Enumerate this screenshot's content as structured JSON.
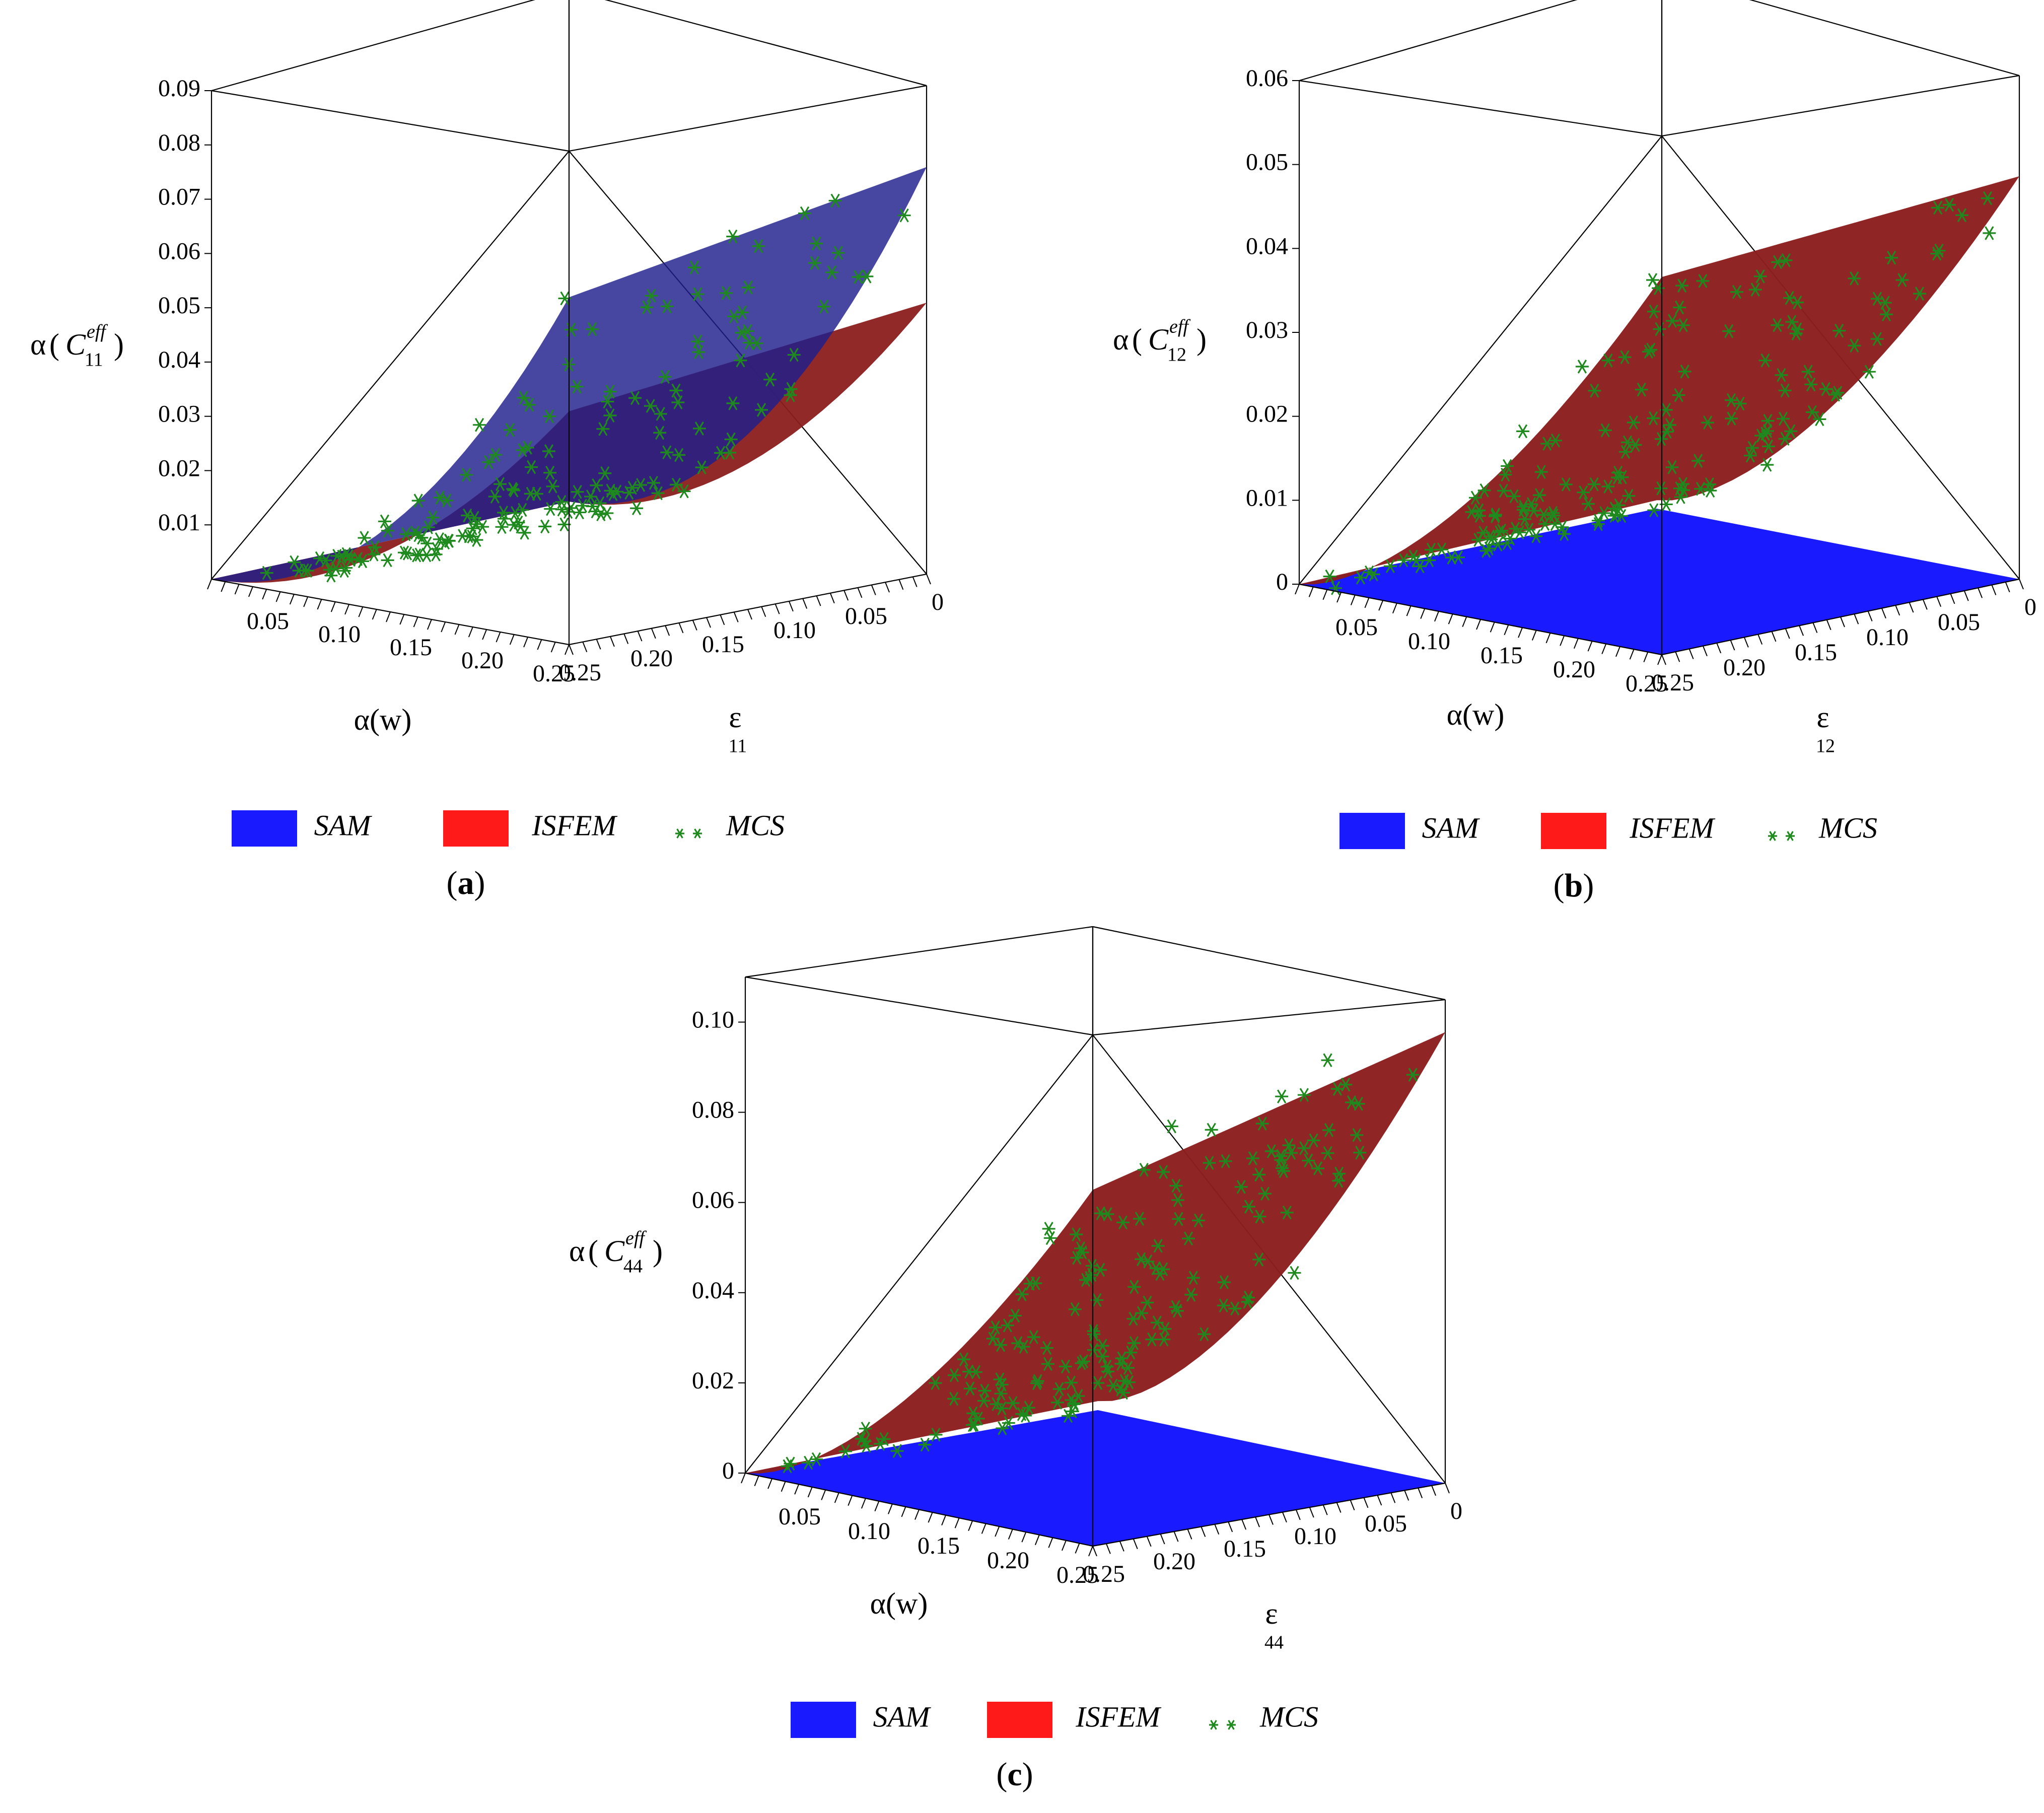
{
  "figure": {
    "legend_labels": {
      "sam": "SAM",
      "isfem": "ISFEM",
      "mcs": "MCS"
    },
    "colors": {
      "sam": "#1a1aff",
      "isfem": "#ff1a1a",
      "sam_surface": "#1e1e8c",
      "isfem_surface": "#8b1e1e",
      "mcs": "#1e8a1e"
    }
  },
  "chart_data": [
    {
      "panel": "a",
      "label_open": "(",
      "label_letter": "a",
      "label_close": ")",
      "type": "surface3d",
      "z_label_prefix": "α",
      "z_label_symbol": "C",
      "z_label_sup": "eff",
      "z_label_sub": "11",
      "x_label": "α(w)",
      "y_label": "ε",
      "y_label_sub": "11",
      "x_ticks": [
        "0.05",
        "0.10",
        "0.15",
        "0.20",
        "0.25"
      ],
      "y_ticks": [
        "0.25",
        "0.20",
        "0.15",
        "0.10",
        "0.05",
        "0"
      ],
      "z_ticks": [
        "0.01",
        "0.02",
        "0.03",
        "0.04",
        "0.05",
        "0.06",
        "0.07",
        "0.08",
        "0.09"
      ],
      "zlim": [
        0,
        0.09
      ],
      "xlim": [
        0,
        0.25
      ],
      "ylim": [
        0,
        0.25
      ],
      "series": [
        {
          "name": "SAM",
          "corners": {
            "origin": 0.0,
            "far_x": 0.064,
            "far_y": 0.0013,
            "far_xy": 0.075
          }
        },
        {
          "name": "ISFEM",
          "corners": {
            "origin": 0.0,
            "far_x": 0.043,
            "far_y": 0.0013,
            "far_xy": 0.05
          }
        }
      ]
    },
    {
      "panel": "b",
      "label_open": "(",
      "label_letter": "b",
      "label_close": ")",
      "type": "surface3d",
      "z_label_prefix": "α",
      "z_label_symbol": "C",
      "z_label_sup": "eff",
      "z_label_sub": "12",
      "x_label": "α(w)",
      "y_label": "ε",
      "y_label_sub": "12",
      "x_ticks": [
        "0.05",
        "0.10",
        "0.15",
        "0.20",
        "0.25"
      ],
      "y_ticks": [
        "0.25",
        "0.20",
        "0.15",
        "0.10",
        "0.05",
        "0"
      ],
      "z_ticks": [
        "0",
        "0.01",
        "0.02",
        "0.03",
        "0.04",
        "0.05",
        "0.06"
      ],
      "zlim": [
        0,
        0.06
      ],
      "xlim": [
        0,
        0.25
      ],
      "ylim": [
        0,
        0.25
      ],
      "series": [
        {
          "name": "SAM",
          "corners": {
            "origin": 0.0,
            "far_x": 0.0,
            "far_y": 0.0,
            "far_xy": 0.0
          }
        },
        {
          "name": "ISFEM",
          "corners": {
            "origin": 0.0,
            "far_x": 0.045,
            "far_y": 0.001,
            "far_xy": 0.048
          }
        }
      ]
    },
    {
      "panel": "c",
      "label_open": "(",
      "label_letter": "c",
      "label_close": ")",
      "type": "surface3d",
      "z_label_prefix": "α",
      "z_label_symbol": "C",
      "z_label_sup": "eff",
      "z_label_sub": "44",
      "x_label": "α(w)",
      "y_label": "ε",
      "y_label_sub": "44",
      "x_ticks": [
        "0.05",
        "0.10",
        "0.15",
        "0.20",
        "0.25"
      ],
      "y_ticks": [
        "0.25",
        "0.20",
        "0.15",
        "0.10",
        "0.05",
        "0"
      ],
      "z_ticks": [
        "0",
        "0.02",
        "0.04",
        "0.06",
        "0.08",
        "0.10"
      ],
      "zlim": [
        0,
        0.11
      ],
      "xlim": [
        0,
        0.25
      ],
      "ylim": [
        0,
        0.25
      ],
      "series": [
        {
          "name": "SAM",
          "corners": {
            "origin": 0.0,
            "far_x": 0.0,
            "far_y": 0.0,
            "far_xy": 0.0
          }
        },
        {
          "name": "ISFEM",
          "corners": {
            "origin": 0.0,
            "far_x": 0.079,
            "far_y": 0.002,
            "far_xy": 0.1
          }
        }
      ]
    }
  ]
}
